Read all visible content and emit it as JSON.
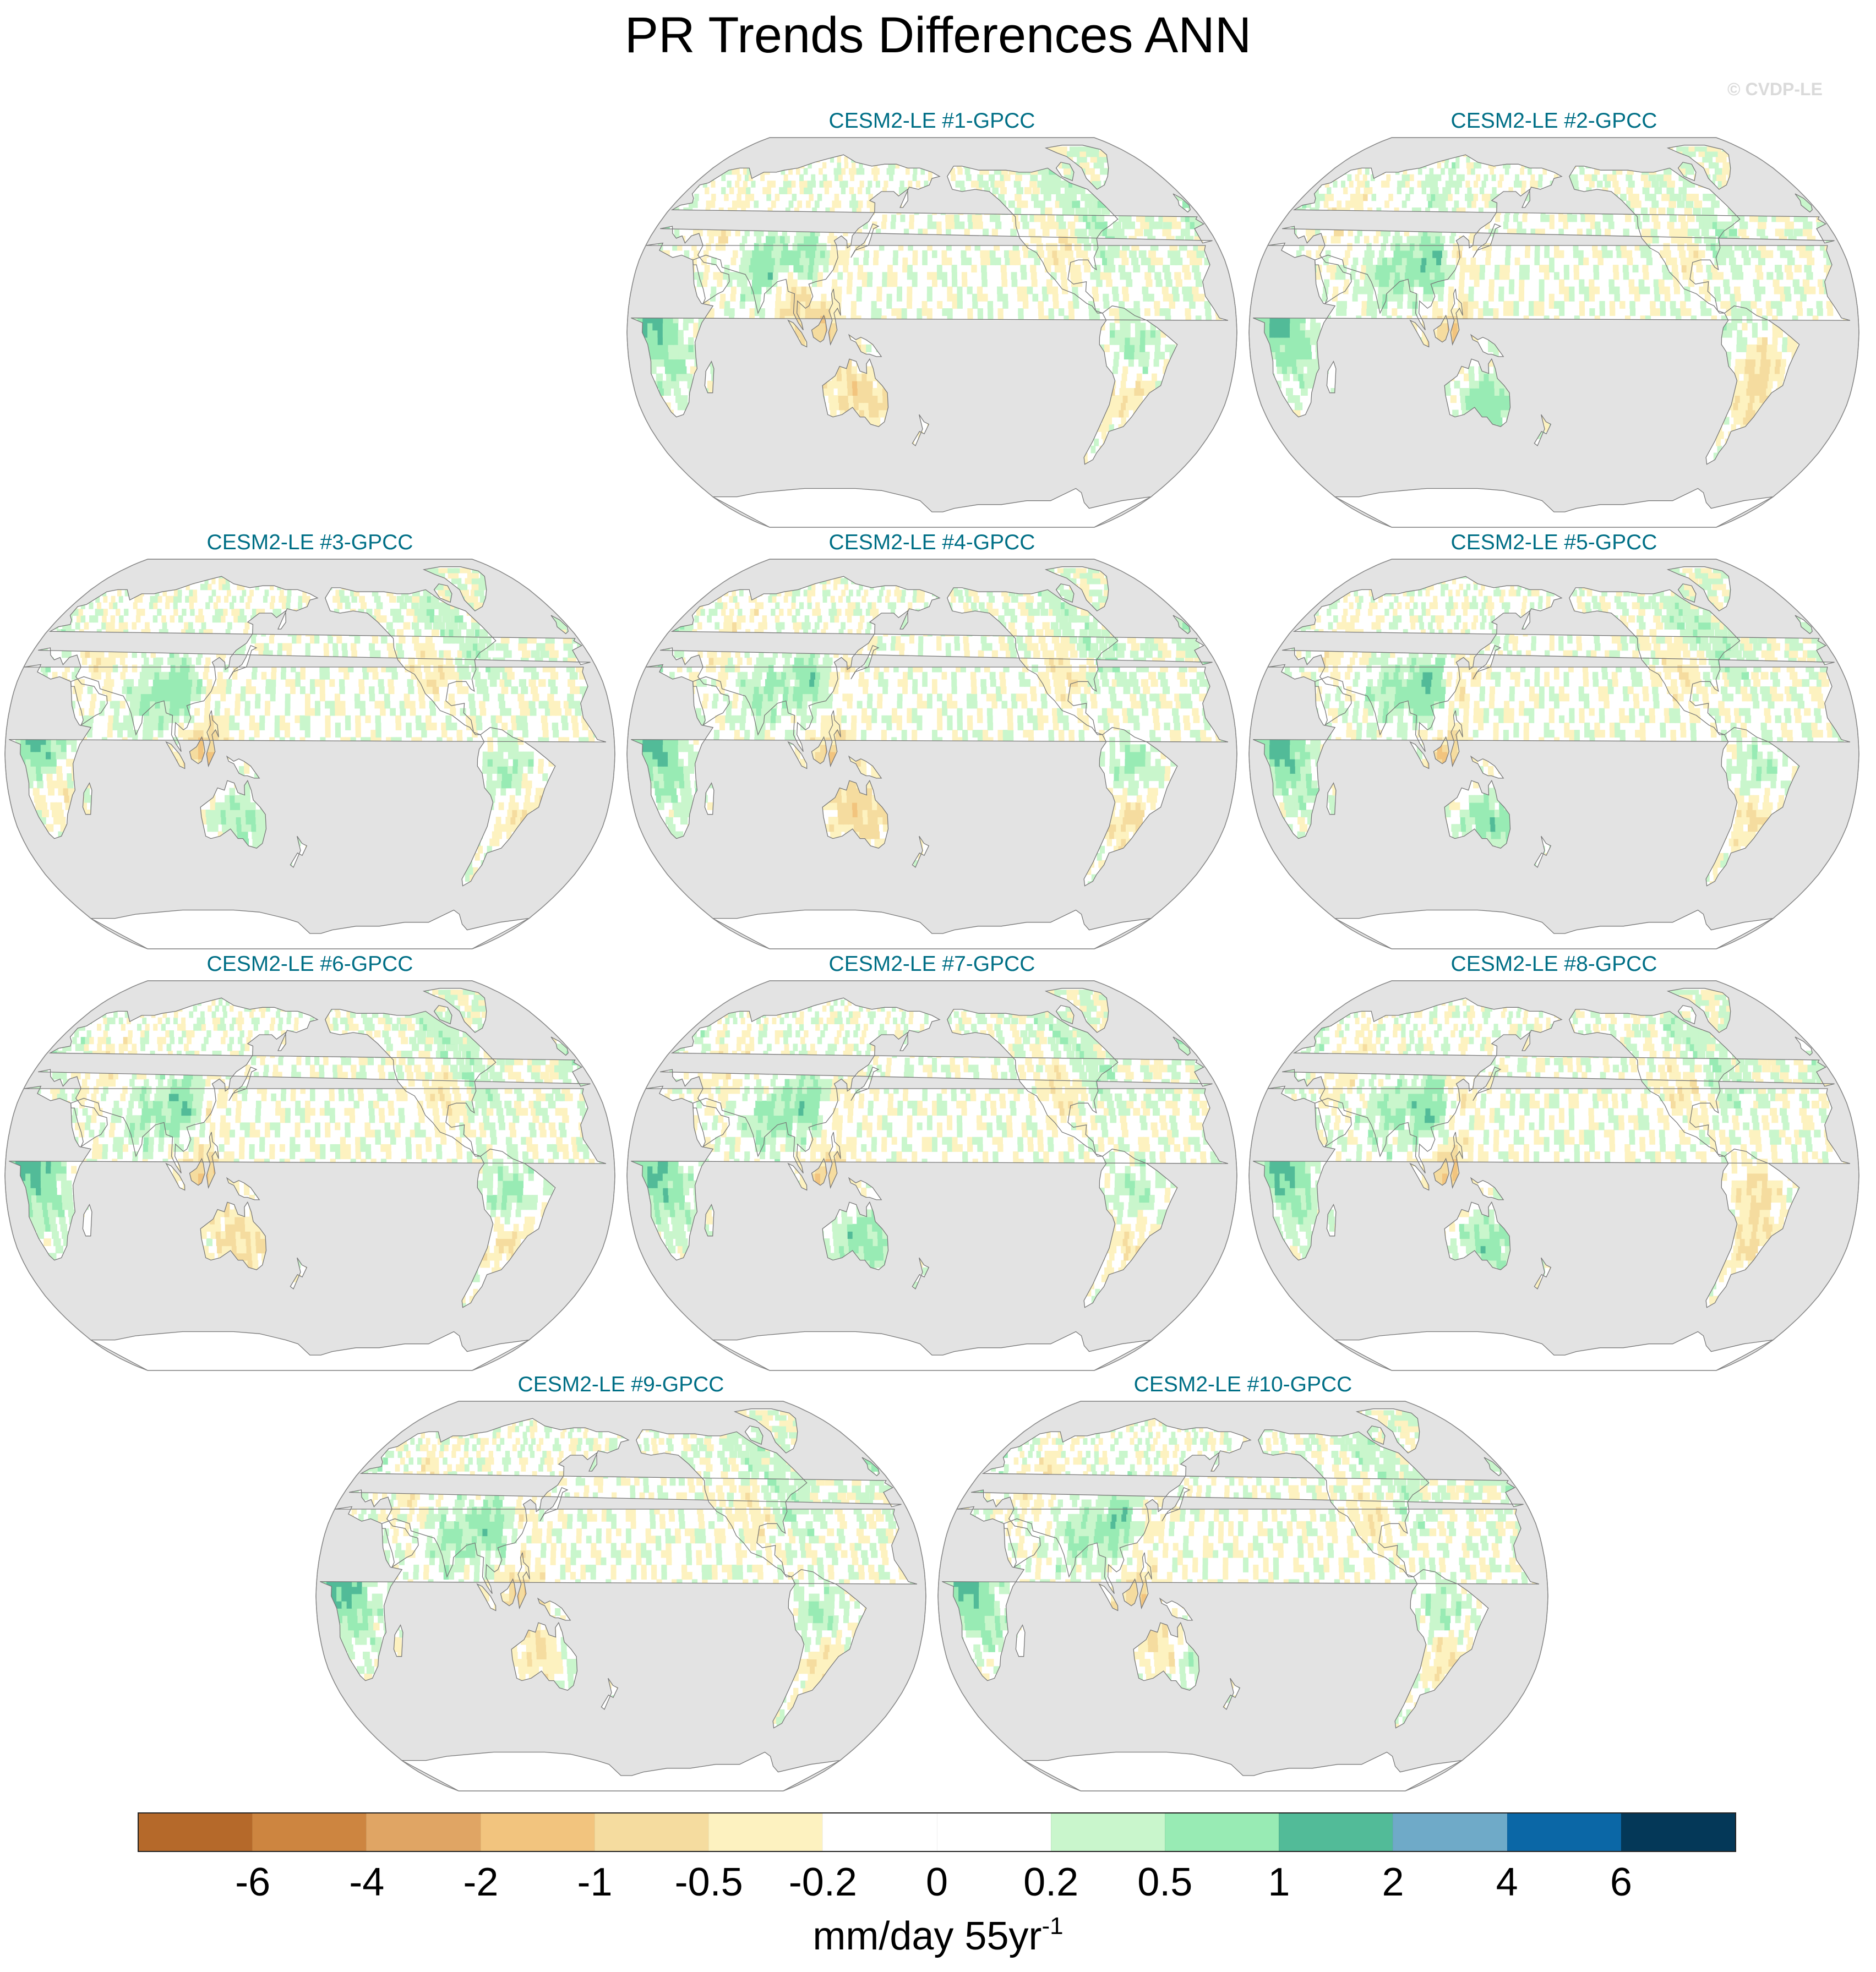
{
  "title": "PR Trends Differences ANN",
  "watermark": "© CVDP-LE",
  "map": {
    "projection": "Robinson",
    "central_longitude": 180,
    "ocean_color": "#e3e3e3",
    "coast_color": "#777777"
  },
  "panels": [
    {
      "title": "CESM2-LE #1-GPCC"
    },
    {
      "title": "CESM2-LE #2-GPCC"
    },
    {
      "title": "CESM2-LE #3-GPCC"
    },
    {
      "title": "CESM2-LE #4-GPCC"
    },
    {
      "title": "CESM2-LE #5-GPCC"
    },
    {
      "title": "CESM2-LE #6-GPCC"
    },
    {
      "title": "CESM2-LE #7-GPCC"
    },
    {
      "title": "CESM2-LE #8-GPCC"
    },
    {
      "title": "CESM2-LE #9-GPCC"
    },
    {
      "title": "CESM2-LE #10-GPCC"
    }
  ],
  "colorbar": {
    "label_main": "mm/day 55yr",
    "label_sup": "-1",
    "ticks": [
      "-6",
      "-4",
      "-2",
      "-1",
      "-0.5",
      "-0.2",
      "0",
      "0.2",
      "0.5",
      "1",
      "2",
      "4",
      "6"
    ],
    "colors": [
      "#b5692a",
      "#cd8540",
      "#e0a564",
      "#f2c47e",
      "#f5dc9f",
      "#fdf2c0",
      "#ffffff",
      "#ffffff",
      "#c9f6cc",
      "#98ebb4",
      "#52bb98",
      "#6faac8",
      "#0b67a6",
      "#043858"
    ]
  }
}
